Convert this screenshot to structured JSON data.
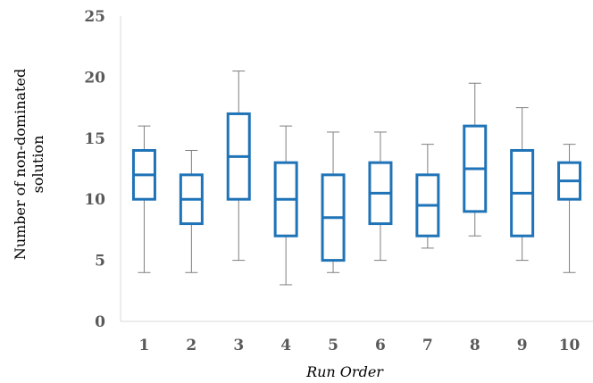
{
  "chart_data": {
    "type": "box",
    "title": "",
    "xlabel": "Run Order",
    "ylabel_lines": [
      "Number of non-dominated",
      "solution"
    ],
    "ylim": [
      0,
      25
    ],
    "yticks": [
      0,
      5,
      10,
      15,
      20,
      25
    ],
    "grid": false,
    "legend": "none",
    "colors": {
      "box": "#1f73b7",
      "whisker": "#7f7f7f",
      "axis": "#d9d9d9"
    },
    "categories": [
      "1",
      "2",
      "3",
      "4",
      "5",
      "6",
      "7",
      "8",
      "9",
      "10"
    ],
    "boxes": [
      {
        "min": 4,
        "q1": 10,
        "median": 12,
        "q3": 14,
        "max": 16
      },
      {
        "min": 4,
        "q1": 8,
        "median": 10,
        "q3": 12,
        "max": 14
      },
      {
        "min": 5,
        "q1": 10,
        "median": 13.5,
        "q3": 17,
        "max": 20.5
      },
      {
        "min": 3,
        "q1": 7,
        "median": 10,
        "q3": 13,
        "max": 16
      },
      {
        "min": 4,
        "q1": 5,
        "median": 8.5,
        "q3": 12,
        "max": 15.5
      },
      {
        "min": 5,
        "q1": 8,
        "median": 10.5,
        "q3": 13,
        "max": 15.5
      },
      {
        "min": 6,
        "q1": 7,
        "median": 9.5,
        "q3": 12,
        "max": 14.5
      },
      {
        "min": 7,
        "q1": 9,
        "median": 12.5,
        "q3": 16,
        "max": 19.5
      },
      {
        "min": 5,
        "q1": 7,
        "median": 10.5,
        "q3": 14,
        "max": 17.5
      },
      {
        "min": 4,
        "q1": 10,
        "median": 11.5,
        "q3": 13,
        "max": 14.5
      }
    ]
  }
}
